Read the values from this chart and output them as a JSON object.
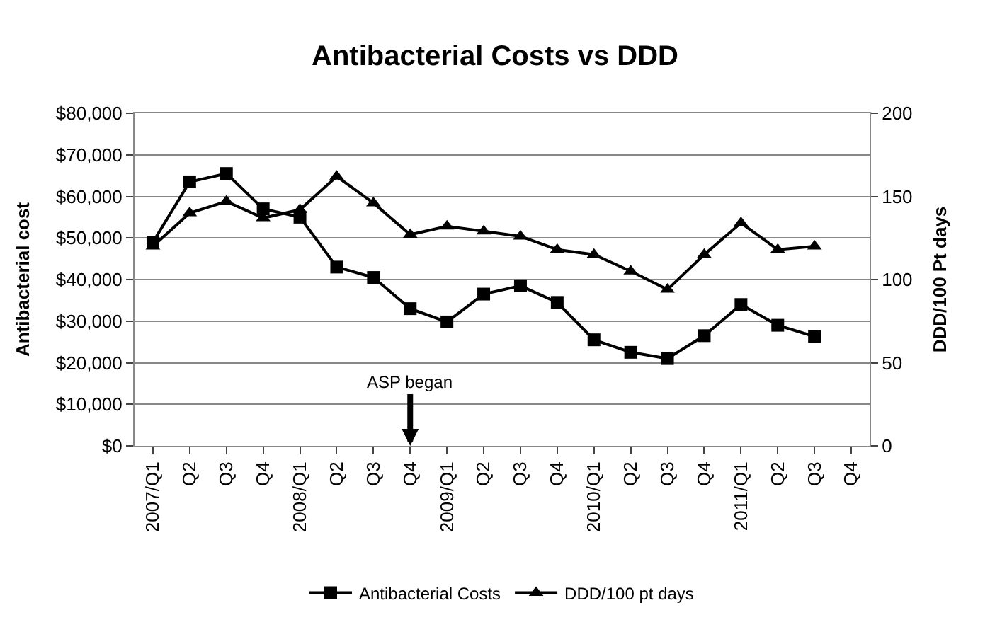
{
  "chart_data": {
    "type": "line",
    "title": "Antibacterial Costs vs DDD",
    "ylabel": "Antibacterial cost",
    "y2label": "DDD/100 Pt days",
    "categories": [
      "2007/Q1",
      "Q2",
      "Q3",
      "Q4",
      "2008/Q1",
      "Q2",
      "Q3",
      "Q4",
      "2009/Q1",
      "Q2",
      "Q3",
      "Q4",
      "2010/Q1",
      "Q2",
      "Q3",
      "Q4",
      "2011/Q1",
      "Q2",
      "Q3",
      "Q4"
    ],
    "series": [
      {
        "name": "Antibacterial Costs",
        "color": "#000000",
        "marker": "square",
        "values": [
          49000,
          63500,
          65500,
          57000,
          55000,
          43000,
          40500,
          33000,
          29800,
          36500,
          38500,
          34500,
          25500,
          22500,
          21000,
          26500,
          34000,
          29000,
          26300,
          null
        ]
      },
      {
        "name": "DDD/100 pt days",
        "color": "#000000",
        "marker": "triangle",
        "axis": "y2",
        "values": [
          120,
          140,
          147,
          137,
          142,
          162,
          146,
          127,
          132,
          129,
          126,
          118,
          115,
          105,
          94,
          115,
          134,
          118,
          120,
          null
        ]
      }
    ],
    "ylim": [
      0,
      80000
    ],
    "yticks": [
      {
        "value": 0,
        "label": "$0"
      },
      {
        "value": 10000,
        "label": "$10,000"
      },
      {
        "value": 20000,
        "label": "$20,000"
      },
      {
        "value": 30000,
        "label": "$30,000"
      },
      {
        "value": 40000,
        "label": "$40,000"
      },
      {
        "value": 50000,
        "label": "$50,000"
      },
      {
        "value": 60000,
        "label": "$60,000"
      },
      {
        "value": 70000,
        "label": "$70,000"
      },
      {
        "value": 80000,
        "label": "$80,000"
      }
    ],
    "y2lim": [
      0,
      200
    ],
    "y2ticks": [
      0,
      50,
      100,
      150,
      200
    ],
    "annotations": [
      "ASP began"
    ],
    "grid": "y",
    "legend": "bottom",
    "line_style": "solid"
  }
}
